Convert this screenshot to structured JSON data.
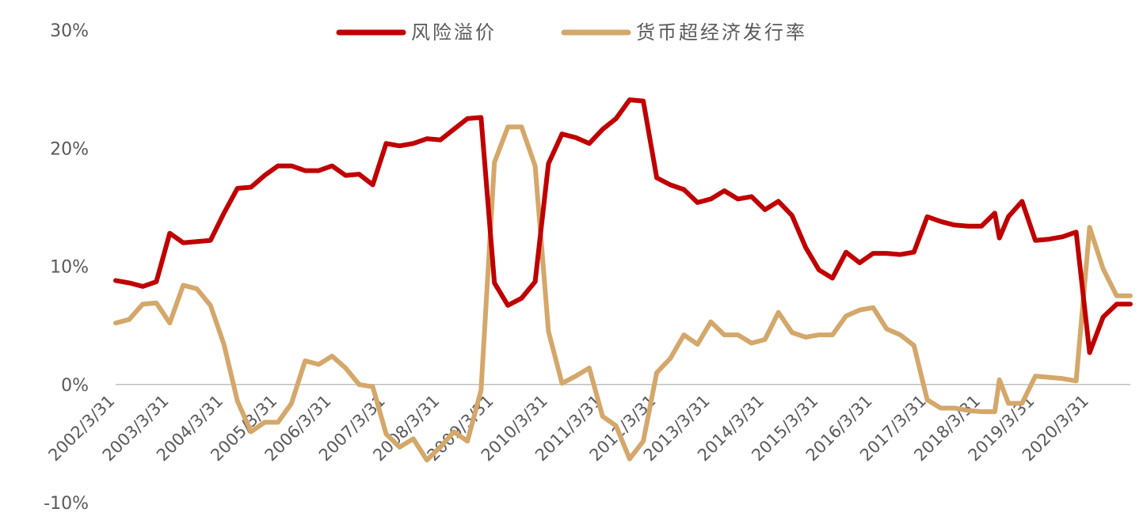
{
  "chart_data": {
    "type": "line",
    "title": "",
    "xlabel": "",
    "ylabel": "",
    "ylim": [
      -0.1,
      0.3
    ],
    "y_ticks": [
      "-10%",
      "0%",
      "10%",
      "20%",
      "30%"
    ],
    "y_tick_values": [
      -0.1,
      0.0,
      0.1,
      0.2,
      0.3
    ],
    "x_tick_labels": [
      "2002/3/31",
      "2003/3/31",
      "2004/3/31",
      "2005/3/31",
      "2006/3/31",
      "2007/3/31",
      "2008/3/31",
      "2009/3/31",
      "2010/3/31",
      "2011/3/31",
      "2012/3/31",
      "2013/3/31",
      "2014/3/31",
      "2015/3/31",
      "2016/3/31",
      "2017/3/31",
      "2018/3/31",
      "2019/3/31",
      "2020/3/31"
    ],
    "x_start": "2002-03-31",
    "x_end": "2020-12-31",
    "grid": false,
    "legend_position": "top",
    "series": [
      {
        "name": "风险溢价",
        "color": "#C00000",
        "x": [
          "2002-03-31",
          "2002-06-30",
          "2002-09-30",
          "2002-12-31",
          "2003-03-31",
          "2003-06-30",
          "2003-09-30",
          "2003-12-31",
          "2004-03-31",
          "2004-06-30",
          "2004-09-30",
          "2004-12-31",
          "2005-03-31",
          "2005-06-30",
          "2005-09-30",
          "2005-12-31",
          "2006-03-31",
          "2006-06-30",
          "2006-09-30",
          "2006-12-31",
          "2007-03-31",
          "2007-06-30",
          "2007-09-30",
          "2007-12-31",
          "2008-03-31",
          "2008-06-30",
          "2008-09-30",
          "2008-12-31",
          "2009-03-31",
          "2009-06-30",
          "2009-09-30",
          "2009-12-31",
          "2010-03-31",
          "2010-06-30",
          "2010-09-30",
          "2010-12-31",
          "2011-03-31",
          "2011-06-30",
          "2011-09-30",
          "2011-12-31",
          "2012-03-31",
          "2012-06-30",
          "2012-09-30",
          "2012-12-31",
          "2013-03-31",
          "2013-06-30",
          "2013-09-30",
          "2013-12-31",
          "2014-03-31",
          "2014-06-30",
          "2014-09-30",
          "2014-12-31",
          "2015-03-31",
          "2015-06-30",
          "2015-09-30",
          "2015-12-31",
          "2016-03-31",
          "2016-06-30",
          "2016-09-30",
          "2016-12-31",
          "2017-03-31",
          "2017-06-30",
          "2017-09-30",
          "2017-12-31",
          "2018-03-31",
          "2018-06-30",
          "2018-07-31",
          "2018-09-30",
          "2018-12-31",
          "2019-03-31",
          "2019-06-30",
          "2019-09-30",
          "2019-12-31",
          "2020-03-31",
          "2020-06-30",
          "2020-09-30",
          "2020-12-31"
        ],
        "values": [
          0.088,
          0.086,
          0.083,
          0.087,
          0.128,
          0.12,
          0.121,
          0.122,
          0.145,
          0.166,
          0.167,
          0.177,
          0.185,
          0.185,
          0.181,
          0.181,
          0.185,
          0.177,
          0.178,
          0.169,
          0.204,
          0.202,
          0.204,
          0.208,
          0.207,
          0.216,
          0.225,
          0.226,
          0.086,
          0.067,
          0.073,
          0.087,
          0.187,
          0.212,
          0.209,
          0.204,
          0.216,
          0.225,
          0.241,
          0.24,
          0.175,
          0.169,
          0.165,
          0.154,
          0.157,
          0.164,
          0.157,
          0.159,
          0.148,
          0.155,
          0.143,
          0.116,
          0.097,
          0.09,
          0.112,
          0.103,
          0.111,
          0.111,
          0.11,
          0.112,
          0.142,
          0.138,
          0.135,
          0.134,
          0.134,
          0.145,
          0.124,
          0.142,
          0.155,
          0.122,
          0.123,
          0.125,
          0.129,
          0.027,
          0.057,
          0.068,
          0.068
        ]
      },
      {
        "name": "货币超经济发行率",
        "color": "#D4A76A",
        "x": [
          "2002-03-31",
          "2002-06-30",
          "2002-09-30",
          "2002-12-31",
          "2003-03-31",
          "2003-06-30",
          "2003-09-30",
          "2003-12-31",
          "2004-03-31",
          "2004-06-30",
          "2004-09-30",
          "2004-12-31",
          "2005-03-31",
          "2005-06-30",
          "2005-09-30",
          "2005-12-31",
          "2006-03-31",
          "2006-06-30",
          "2006-09-30",
          "2006-12-31",
          "2007-03-31",
          "2007-06-30",
          "2007-09-30",
          "2007-12-31",
          "2008-03-31",
          "2008-06-30",
          "2008-09-30",
          "2008-12-31",
          "2009-03-31",
          "2009-06-30",
          "2009-09-30",
          "2009-12-31",
          "2010-03-31",
          "2010-06-30",
          "2010-09-30",
          "2010-12-31",
          "2011-03-31",
          "2011-06-30",
          "2011-09-30",
          "2011-12-31",
          "2012-03-31",
          "2012-06-30",
          "2012-09-30",
          "2012-12-31",
          "2013-03-31",
          "2013-06-30",
          "2013-09-30",
          "2013-12-31",
          "2014-03-31",
          "2014-06-30",
          "2014-09-30",
          "2014-12-31",
          "2015-03-31",
          "2015-06-30",
          "2015-09-30",
          "2015-12-31",
          "2016-03-31",
          "2016-06-30",
          "2016-09-30",
          "2016-12-31",
          "2017-03-31",
          "2017-06-30",
          "2017-09-30",
          "2017-12-31",
          "2018-03-31",
          "2018-06-30",
          "2018-07-31",
          "2018-09-30",
          "2018-12-31",
          "2019-03-31",
          "2019-06-30",
          "2019-09-30",
          "2019-12-31",
          "2020-03-31",
          "2020-06-30",
          "2020-09-30",
          "2020-12-31"
        ],
        "values": [
          0.052,
          0.055,
          0.068,
          0.069,
          0.052,
          0.084,
          0.081,
          0.067,
          0.034,
          -0.014,
          -0.04,
          -0.032,
          -0.032,
          -0.016,
          0.02,
          0.017,
          0.024,
          0.014,
          0.0,
          -0.002,
          -0.042,
          -0.053,
          -0.046,
          -0.064,
          -0.053,
          -0.04,
          -0.048,
          -0.005,
          0.188,
          0.218,
          0.218,
          0.185,
          0.045,
          0.001,
          0.007,
          0.014,
          -0.027,
          -0.035,
          -0.063,
          -0.048,
          0.01,
          0.022,
          0.042,
          0.034,
          0.053,
          0.042,
          0.042,
          0.035,
          0.038,
          0.061,
          0.044,
          0.04,
          0.042,
          0.042,
          0.058,
          0.063,
          0.065,
          0.047,
          0.042,
          0.033,
          -0.013,
          -0.02,
          -0.02,
          -0.022,
          -0.023,
          -0.023,
          0.004,
          -0.016,
          -0.016,
          0.007,
          0.006,
          0.005,
          0.003,
          0.133,
          0.098,
          0.075,
          0.075
        ]
      }
    ]
  }
}
